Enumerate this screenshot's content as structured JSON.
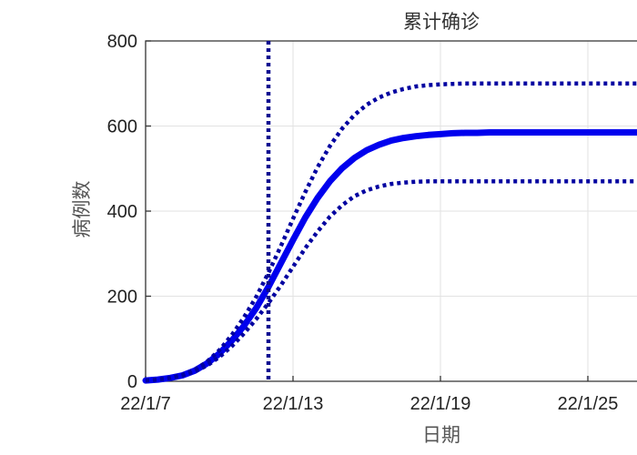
{
  "chart_data": {
    "type": "line",
    "title": "累计确诊",
    "xlabel": "日期",
    "ylabel": "病例数",
    "x_ticks": [
      "22/1/7",
      "22/1/13",
      "22/1/19",
      "22/1/25"
    ],
    "x_tick_days": [
      0,
      6,
      12,
      18
    ],
    "xlim_days": [
      0,
      20
    ],
    "y_ticks": [
      0,
      200,
      400,
      600,
      800
    ],
    "ylim": [
      0,
      800
    ],
    "grid": true,
    "vertical_marker_day": 5,
    "x_days": [
      0,
      0.5,
      1,
      1.5,
      2,
      2.5,
      3,
      3.5,
      4,
      4.5,
      5,
      5.5,
      6,
      6.5,
      7,
      7.5,
      8,
      8.5,
      9,
      9.5,
      10,
      10.5,
      11,
      11.5,
      12,
      12.5,
      13,
      13.5,
      14,
      14.5,
      15,
      15.5,
      16,
      16.5,
      17,
      17.5,
      18,
      18.5,
      19,
      19.5,
      20
    ],
    "series": [
      {
        "style": "solid",
        "color": "#0000ee",
        "values": [
          2,
          4,
          8,
          14,
          25,
          42,
          65,
          95,
          130,
          172,
          222,
          277,
          332,
          385,
          431,
          470,
          501,
          525,
          543,
          556,
          566,
          572,
          576,
          579,
          581,
          583,
          584,
          584,
          585,
          585,
          585,
          585,
          585,
          585,
          585,
          585,
          585,
          585,
          585,
          585,
          585
        ]
      },
      {
        "style": "dotted",
        "color": "#0000a0",
        "values": [
          2,
          4,
          8,
          15,
          27,
          46,
          73,
          108,
          150,
          198,
          255,
          317,
          382,
          445,
          503,
          553,
          594,
          626,
          650,
          667,
          679,
          687,
          693,
          696,
          698,
          699,
          700,
          700,
          700,
          700,
          700,
          700,
          700,
          700,
          700,
          700,
          700,
          700,
          700,
          700,
          700
        ]
      },
      {
        "style": "dotted",
        "color": "#0000a0",
        "values": [
          2,
          4,
          8,
          14,
          23,
          37,
          57,
          82,
          112,
          146,
          184,
          225,
          269,
          313,
          352,
          387,
          414,
          435,
          449,
          458,
          464,
          467,
          469,
          470,
          470,
          470,
          470,
          470,
          470,
          470,
          470,
          470,
          470,
          470,
          470,
          470,
          470,
          470,
          470,
          470,
          470
        ]
      }
    ]
  }
}
